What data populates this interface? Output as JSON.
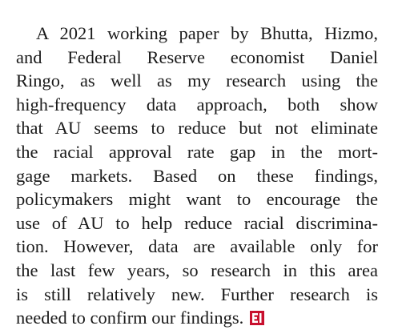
{
  "paragraph": {
    "lines": [
      "A 2021 working paper by Bhutta, Hizmo,",
      "and Federal Reserve economist Daniel",
      "Ringo, as well as my research using the",
      "high-frequency data approach, both show",
      "that AU seems to reduce but not eliminate",
      "the racial approval rate gap in the mort-",
      "gage markets. Based on these findings,",
      "policymakers might want to encourage the",
      "use of AU to help reduce racial discrimina-",
      "tion. However, data are available only for",
      "the last few years, so research in this area",
      "is still relatively new. Further research is",
      "needed to confirm our findings."
    ]
  }
}
